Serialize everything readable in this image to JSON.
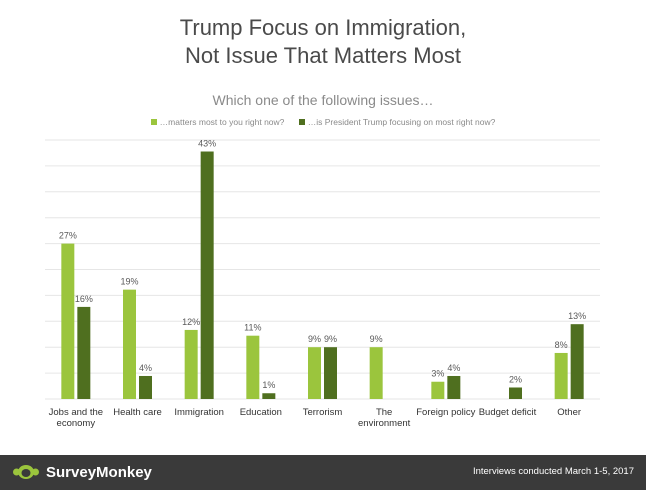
{
  "title_line1": "Trump Focus on Immigration,",
  "title_line2": "Not Issue That Matters Most",
  "subtitle": "Which one of the following issues…",
  "colors": {
    "series1": "#9bc53d",
    "series2": "#4f6f1f",
    "grid": "#e6e6e6",
    "label": "#595959"
  },
  "footer": {
    "brand": "SurveyMonkey",
    "note": "Interviews conducted March 1-5, 2017"
  },
  "chart_data": {
    "type": "bar",
    "categories": [
      [
        "Jobs and the",
        "economy"
      ],
      [
        "Health care"
      ],
      [
        "Immigration"
      ],
      [
        "Education"
      ],
      [
        "Terrorism"
      ],
      [
        "The",
        "environment"
      ],
      [
        "Foreign policy"
      ],
      [
        "Budget deficit"
      ],
      [
        "Other"
      ]
    ],
    "series": [
      {
        "name": "…matters most to you right now?",
        "values": [
          27,
          19,
          12,
          11,
          9,
          9,
          3,
          null,
          8
        ],
        "labels": [
          "27%",
          "19%",
          "12%",
          "11%",
          "9%",
          "9%",
          "3%",
          "",
          "8%"
        ]
      },
      {
        "name": "…is President Trump focusing on most right now?",
        "values": [
          16,
          4,
          43,
          1,
          9,
          null,
          4,
          2,
          13
        ],
        "labels": [
          "16%",
          "4%",
          "43%",
          "1%",
          "9%",
          "",
          "4%",
          "2%",
          "13%"
        ]
      }
    ],
    "ylim": [
      0,
      45
    ],
    "grid": true,
    "legend": "top"
  }
}
